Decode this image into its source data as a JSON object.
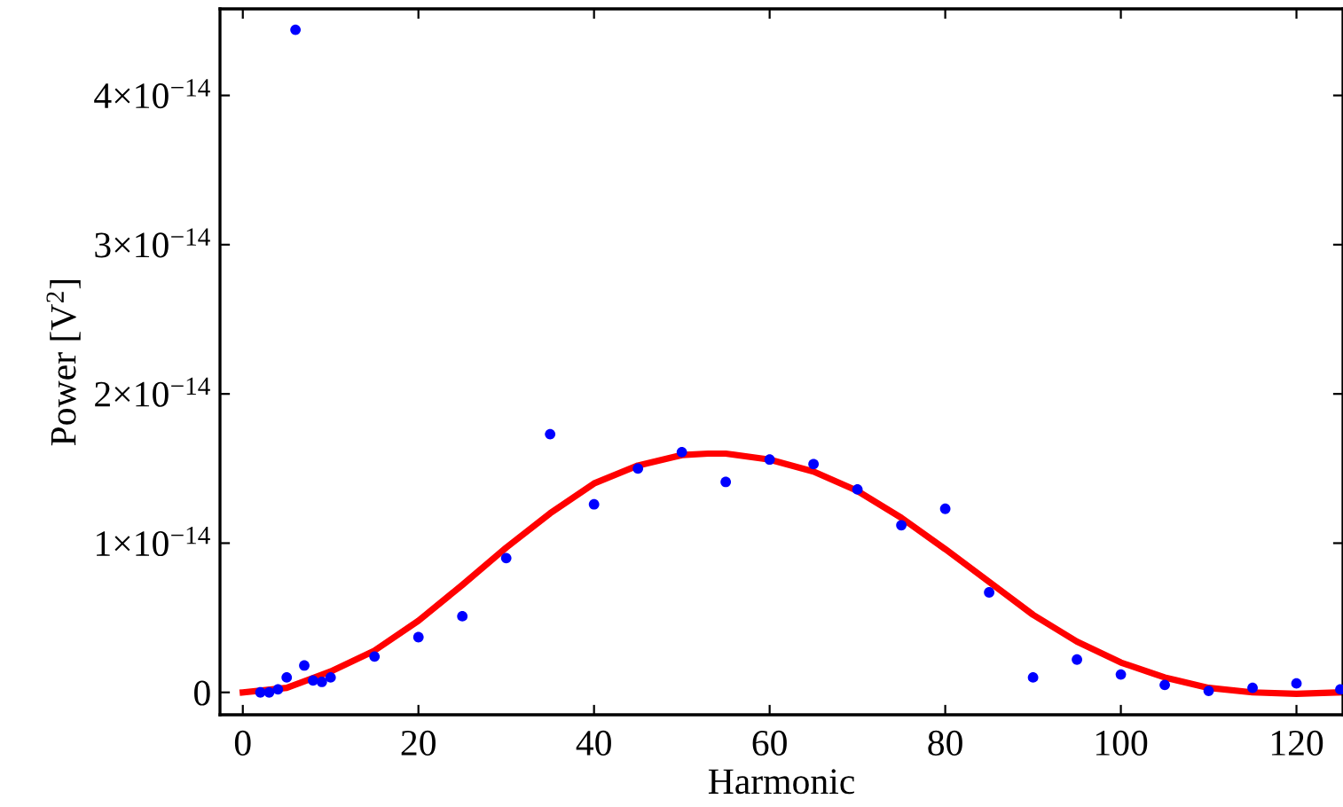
{
  "chart_data": {
    "type": "scatter",
    "xlabel": "Harmonic",
    "ylabel": "Power [V$^{2}$]",
    "xlim": [
      -2.6,
      125.3
    ],
    "ylim": [
      -1.5e-15,
      4.58e-14
    ],
    "xticks": [
      0,
      20,
      40,
      60,
      80,
      100,
      120
    ],
    "yticks": [
      0,
      {
        "value": 1e-14,
        "label": "1×10$^{−14}$"
      },
      {
        "value": 2e-14,
        "label": "2×10$^{−14}$"
      },
      {
        "value": 3e-14,
        "label": "3×10$^{−14}$"
      },
      {
        "value": 4e-14,
        "label": "4×10$^{−14}$"
      }
    ],
    "grid": false,
    "marker": "circle",
    "series": [
      {
        "color": "#0000ff",
        "x": [
          2,
          3,
          4,
          5,
          6,
          7,
          8,
          9,
          10,
          15,
          20,
          25,
          30,
          35,
          40,
          45,
          50,
          55,
          60,
          65,
          70,
          75,
          80,
          85,
          90,
          95,
          100,
          105,
          110,
          115,
          120,
          125
        ],
        "values": [
          0.0,
          0.0,
          2e-16,
          1e-15,
          4.44e-14,
          1.8e-15,
          8e-16,
          7e-16,
          1e-15,
          2.4e-15,
          3.7e-15,
          5.1e-15,
          9e-15,
          1.73e-14,
          1.26e-14,
          1.5e-14,
          1.61e-14,
          1.41e-14,
          1.56e-14,
          1.53e-14,
          1.36e-14,
          1.12e-14,
          1.23e-14,
          6.7e-15,
          1e-15,
          2.2e-15,
          1.2e-15,
          5e-16,
          1e-16,
          3e-16,
          6e-16,
          2e-16
        ]
      },
      {
        "type": "line",
        "color": "#ff0000",
        "marker": "none",
        "line_style": "solid",
        "x": [
          0,
          5,
          10,
          15,
          20,
          25,
          30,
          35,
          40,
          45,
          50,
          53,
          55,
          60,
          65,
          70,
          75,
          80,
          85,
          90,
          95,
          100,
          105,
          110,
          115,
          120,
          125
        ],
        "values": [
          0.0,
          3e-16,
          1.4e-15,
          2.8e-15,
          4.8e-15,
          7.2e-15,
          9.7e-15,
          1.2e-14,
          1.4e-14,
          1.52e-14,
          1.59e-14,
          1.6e-14,
          1.6e-14,
          1.56e-14,
          1.48e-14,
          1.35e-14,
          1.17e-14,
          9.6e-15,
          7.4e-15,
          5.2e-15,
          3.4e-15,
          2e-15,
          1e-15,
          3e-16,
          0.0,
          -1e-16,
          0.0
        ]
      }
    ]
  }
}
